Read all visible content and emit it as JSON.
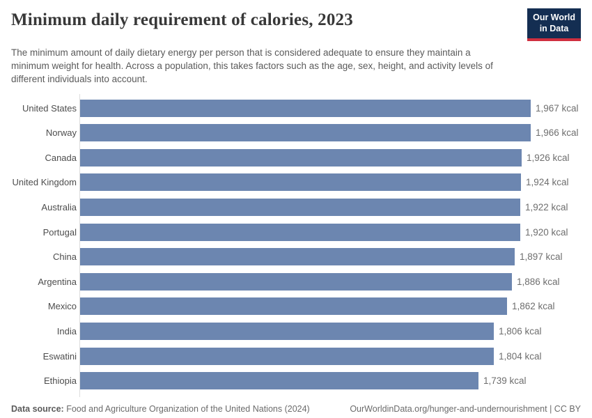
{
  "header": {
    "title": "Minimum daily requirement of calories, 2023",
    "subtitle": "The minimum amount of daily dietary energy per person that is considered adequate to ensure they maintain a minimum weight for health. Across a population, this takes factors such as the age, sex, height, and activity levels of different individuals into account."
  },
  "logo": {
    "line1": "Our World",
    "line2": "in Data",
    "bg_color": "#142e52",
    "stripe_color": "#cf2f3f"
  },
  "chart_data": {
    "type": "bar",
    "orientation": "horizontal",
    "title": "Minimum daily requirement of calories, 2023",
    "unit": "kcal",
    "categories": [
      "United States",
      "Norway",
      "Canada",
      "United Kingdom",
      "Australia",
      "Portugal",
      "China",
      "Argentina",
      "Mexico",
      "India",
      "Eswatini",
      "Ethiopia"
    ],
    "values": [
      1967,
      1966,
      1926,
      1924,
      1922,
      1920,
      1897,
      1886,
      1862,
      1806,
      1804,
      1739
    ],
    "value_labels": [
      "1,967 kcal",
      "1,966 kcal",
      "1,926 kcal",
      "1,924 kcal",
      "1,922 kcal",
      "1,920 kcal",
      "1,897 kcal",
      "1,886 kcal",
      "1,862 kcal",
      "1,806 kcal",
      "1,804 kcal",
      "1,739 kcal"
    ],
    "xlim": [
      0,
      2000
    ],
    "bar_color": "#6c86b0",
    "grid": false,
    "legend": "none"
  },
  "footer": {
    "source_label": "Data source:",
    "source_text": " Food and Agriculture Organization of the United Nations (2024)",
    "url_text": "OurWorldinData.org/hunger-and-undernourishment",
    "separator": " | ",
    "license_text": "CC BY"
  }
}
